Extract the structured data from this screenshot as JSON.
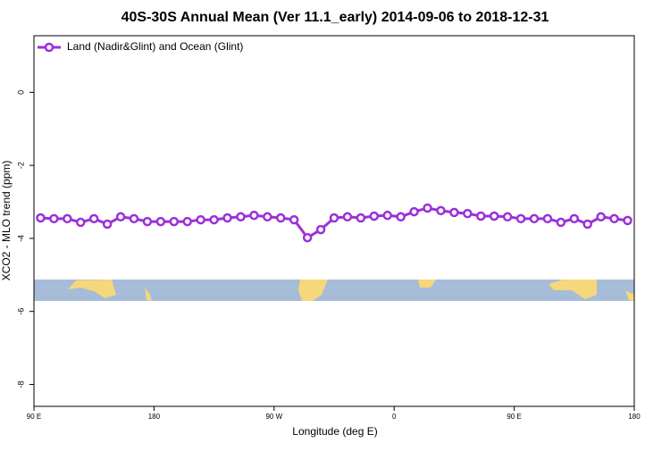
{
  "chart_data": {
    "type": "line",
    "title": "40S-30S Annual Mean (Ver 11.1_early)   2014-09-06 to 2018-12-31",
    "x_label": "Longitude (deg E)",
    "y_label": "XCO2 - MLO trend (ppm)",
    "x": [
      95,
      105,
      115,
      125,
      135,
      145,
      155,
      165,
      175,
      185,
      195,
      205,
      215,
      225,
      235,
      245,
      255,
      265,
      275,
      285,
      295,
      305,
      315,
      325,
      335,
      345,
      355,
      365,
      375,
      385,
      395,
      405,
      415,
      425,
      435,
      445,
      455,
      465,
      475,
      485,
      495,
      505,
      515,
      525,
      535
    ],
    "series": [
      {
        "name": "Land (Nadir&Glint) and Ocean (Glint)",
        "color": "#9b30d9",
        "values": [
          -3.44,
          -3.46,
          -3.46,
          -3.56,
          -3.46,
          -3.61,
          -3.41,
          -3.46,
          -3.54,
          -3.54,
          -3.54,
          -3.54,
          -3.49,
          -3.49,
          -3.44,
          -3.41,
          -3.37,
          -3.41,
          -3.44,
          -3.49,
          -3.98,
          -3.76,
          -3.44,
          -3.41,
          -3.44,
          -3.39,
          -3.37,
          -3.41,
          -3.27,
          -3.17,
          -3.24,
          -3.29,
          -3.32,
          -3.39,
          -3.39,
          -3.41,
          -3.46,
          -3.46,
          -3.46,
          -3.56,
          -3.46,
          -3.61,
          -3.41,
          -3.46,
          -3.51
        ]
      }
    ],
    "xlim": [
      90,
      540
    ],
    "xticks": [
      {
        "value": 90,
        "label": "90 E"
      },
      {
        "value": 180,
        "label": "180"
      },
      {
        "value": 270,
        "label": "90 W"
      },
      {
        "value": 360,
        "label": "0"
      },
      {
        "value": 450,
        "label": "90 E"
      },
      {
        "value": 540,
        "label": "180"
      }
    ],
    "ylim": [
      -8.6,
      1.55
    ],
    "yticks": [
      0,
      -2,
      -4,
      -6,
      -8
    ],
    "legend": "top-left"
  }
}
